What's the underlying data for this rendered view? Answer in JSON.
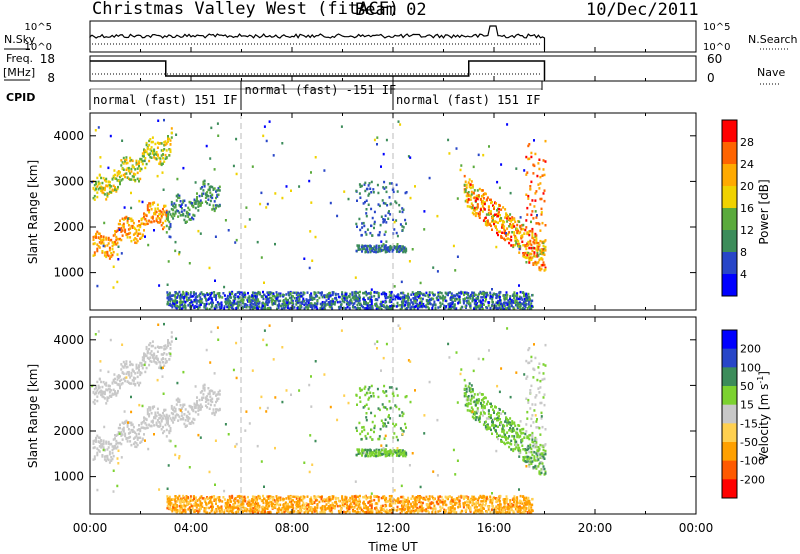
{
  "header": {
    "station": "Christmas Valley West (fitACF)",
    "beam": "Beam 02",
    "date": "10/Dec/2011"
  },
  "panels": {
    "nsky_label": "N.Sky",
    "nsearch_label": "N.Search",
    "freq_label_1": "Freq.",
    "freq_label_2": "[MHz]",
    "nave_label": "Nave",
    "cpid_label": "CPID",
    "nsky_ticks": [
      "10^5",
      "10^0"
    ],
    "freq_ticks": [
      "18",
      "8"
    ],
    "nave_ticks": [
      "60",
      "0"
    ],
    "cpid_segments": [
      {
        "label": "normal (fast) 151 IF",
        "start": 0,
        "end": 6
      },
      {
        "label": "normal (fast) -151 IF",
        "start": 6,
        "end": 12
      },
      {
        "label": "normal (fast) 151 IF",
        "start": 12,
        "end": 18
      }
    ]
  },
  "axes": {
    "xlabel": "Time UT",
    "ylabel": "Slant Range [km]",
    "x_ticks": [
      "00:00",
      "04:00",
      "08:00",
      "12:00",
      "16:00",
      "20:00",
      "00:00"
    ],
    "y_ticks": [
      "1000",
      "2000",
      "3000",
      "4000"
    ],
    "power_colorbar_label": "Power [dB]",
    "power_ticks": [
      "28",
      "24",
      "20",
      "16",
      "12",
      "8",
      "4"
    ],
    "velocity_colorbar_label": "Velocity [m s",
    "velocity_label_sup": "-1",
    "velocity_label_end": "]",
    "velocity_ticks": [
      "200",
      "100",
      "50",
      "15",
      "-15",
      "-50",
      "-100",
      "-200"
    ]
  },
  "colors": {
    "power_scale": [
      "#0000ff",
      "#2846c8",
      "#3c8c5a",
      "#5aaa3c",
      "#f0d200",
      "#ffaa00",
      "#ff6400",
      "#ff0000"
    ],
    "velocity_scale": [
      "#ff0000",
      "#ff5a00",
      "#ffa000",
      "#ffd050",
      "#c8c8c8",
      "#7cd230",
      "#3c8c5a",
      "#2846c8",
      "#0000ff"
    ]
  },
  "chart_data": {
    "type": "heatmap",
    "x_range_hours": [
      0,
      24
    ],
    "y_range_km": [
      180,
      4500
    ],
    "frequency_mhz": [
      {
        "start": 0,
        "end": 3,
        "value": 16
      },
      {
        "start": 3,
        "end": 15,
        "value": 10
      },
      {
        "start": 15,
        "end": 18,
        "value": 16
      }
    ],
    "power_echo_regions": [
      {
        "name": "ground scatter arcs",
        "t_start": 0.1,
        "t_end": 5.1,
        "range_km": [
          1200,
          4500
        ],
        "power_db": 26
      },
      {
        "name": "near-range scatter",
        "t_start": 3.0,
        "t_end": 17.5,
        "range_km": [
          180,
          600
        ],
        "power_db": 6
      },
      {
        "name": "patch 12UT",
        "t_start": 10.5,
        "t_end": 12.5,
        "range_km": [
          1400,
          3000
        ],
        "power_db": 7
      },
      {
        "name": "late arcs",
        "t_start": 14.8,
        "t_end": 18.0,
        "range_km": [
          1100,
          3800
        ],
        "power_db": 22
      }
    ],
    "velocity_echo_regions": [
      {
        "name": "ground scatter arcs",
        "t_start": 0.1,
        "t_end": 5.1,
        "velocity_ms": 0
      },
      {
        "name": "near-range scatter",
        "t_start": 3.0,
        "t_end": 17.5,
        "velocity_ms": -60
      },
      {
        "name": "patch 12UT",
        "t_start": 10.5,
        "t_end": 12.5,
        "velocity_ms": 40
      },
      {
        "name": "late arcs",
        "t_start": 14.8,
        "t_end": 18.0,
        "velocity_ms": 30
      }
    ]
  }
}
